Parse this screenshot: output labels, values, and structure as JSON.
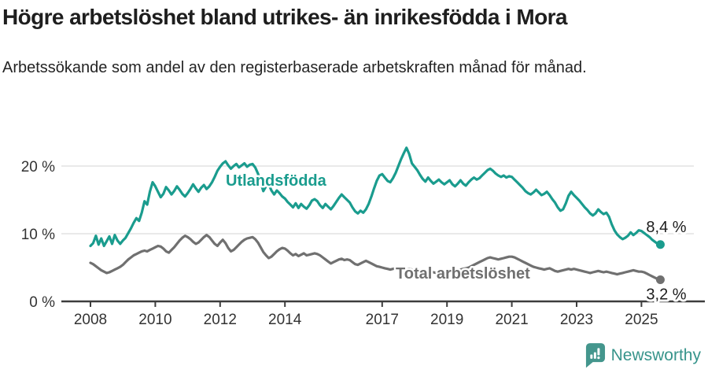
{
  "header": {
    "title": "Högre arbetslöshet bland utrikes- än inrikesfödda i Mora",
    "subtitle": "Arbetssökande som andel av den registerbaserade arbetskraften månad för månad."
  },
  "chart_data": {
    "type": "line",
    "title": "Högre arbetslöshet bland utrikes- än inrikesfödda i Mora",
    "subtitle": "Arbetssökande som andel av den registerbaserade arbetskraften månad för månad.",
    "xlabel": "",
    "ylabel": "",
    "x_start_year": 2008,
    "x_step_months": 1,
    "x_end": "2025-08",
    "x_ticks": [
      2008,
      2010,
      2012,
      2014,
      2017,
      2019,
      2021,
      2023,
      2025
    ],
    "y_ticks": [
      {
        "value": 0,
        "label": "0 %"
      },
      {
        "value": 10,
        "label": "10 %"
      },
      {
        "value": 20,
        "label": "20 %"
      }
    ],
    "ylim": [
      0,
      23.5
    ],
    "grid": "horizontal",
    "legend_position": "inline-labels",
    "series": [
      {
        "name": "Utlandsfödda",
        "color": "#1a9c8e",
        "end_label": "8,4 %",
        "end_value": 8.4,
        "values": [
          8.2,
          8.6,
          9.7,
          8.4,
          9.3,
          8.2,
          8.9,
          9.6,
          8.5,
          9.8,
          9.0,
          8.5,
          9.0,
          9.4,
          10.1,
          10.8,
          11.6,
          12.3,
          11.9,
          13.1,
          14.8,
          14.3,
          16.2,
          17.6,
          17.0,
          16.2,
          15.4,
          15.9,
          16.9,
          16.4,
          15.8,
          16.3,
          17.0,
          16.5,
          15.9,
          15.5,
          16.0,
          16.6,
          17.3,
          16.7,
          16.2,
          16.8,
          17.2,
          16.6,
          17.0,
          17.6,
          18.4,
          19.3,
          19.9,
          20.4,
          20.7,
          20.1,
          19.6,
          20.0,
          20.3,
          19.8,
          20.1,
          20.4,
          19.9,
          20.2,
          20.3,
          19.8,
          18.9,
          17.6,
          16.3,
          17.0,
          17.3,
          16.4,
          15.8,
          16.4,
          16.0,
          15.5,
          15.2,
          14.7,
          14.3,
          13.9,
          14.5,
          13.8,
          14.4,
          14.0,
          13.7,
          14.2,
          14.9,
          15.1,
          14.8,
          14.2,
          13.8,
          14.4,
          14.0,
          13.6,
          14.1,
          14.7,
          15.3,
          15.8,
          15.4,
          15.0,
          14.6,
          13.9,
          13.3,
          13.0,
          13.4,
          13.1,
          13.6,
          14.4,
          15.5,
          16.7,
          17.8,
          18.6,
          18.8,
          18.3,
          17.8,
          17.6,
          18.2,
          19.0,
          20.0,
          21.0,
          21.9,
          22.7,
          21.8,
          20.4,
          19.9,
          19.4,
          18.7,
          18.1,
          17.7,
          18.3,
          17.8,
          17.4,
          17.7,
          18.0,
          17.6,
          17.3,
          17.6,
          17.9,
          17.3,
          17.0,
          17.4,
          17.9,
          17.4,
          17.1,
          17.6,
          18.0,
          18.3,
          18.0,
          18.2,
          18.6,
          19.0,
          19.4,
          19.6,
          19.3,
          18.9,
          18.6,
          18.4,
          18.6,
          18.3,
          18.5,
          18.4,
          18.0,
          17.6,
          17.2,
          16.8,
          16.3,
          16.0,
          15.8,
          16.1,
          16.5,
          16.1,
          15.7,
          15.9,
          16.2,
          15.7,
          15.1,
          14.6,
          13.9,
          13.4,
          13.6,
          14.5,
          15.6,
          16.2,
          15.7,
          15.3,
          14.9,
          14.4,
          13.9,
          13.5,
          13.0,
          12.7,
          13.0,
          13.6,
          13.2,
          12.9,
          13.1,
          12.5,
          11.4,
          10.5,
          9.9,
          9.5,
          9.2,
          9.4,
          9.7,
          10.2,
          9.8,
          10.1,
          10.5,
          10.4,
          10.1,
          9.8,
          9.5,
          9.1,
          8.8,
          8.5,
          8.4
        ]
      },
      {
        "name": "Total arbetslöshet",
        "color": "#707070",
        "end_label": "3,2 %",
        "end_value": 3.2,
        "values": [
          5.7,
          5.5,
          5.2,
          4.9,
          4.6,
          4.4,
          4.2,
          4.3,
          4.5,
          4.7,
          4.9,
          5.1,
          5.4,
          5.8,
          6.2,
          6.5,
          6.8,
          7.0,
          7.2,
          7.4,
          7.5,
          7.4,
          7.6,
          7.8,
          8.0,
          8.2,
          8.1,
          7.8,
          7.4,
          7.2,
          7.6,
          8.0,
          8.5,
          9.0,
          9.4,
          9.7,
          9.5,
          9.2,
          8.8,
          8.5,
          8.7,
          9.1,
          9.5,
          9.8,
          9.5,
          9.0,
          8.5,
          8.2,
          8.7,
          9.1,
          8.6,
          7.9,
          7.4,
          7.6,
          8.0,
          8.4,
          8.8,
          9.1,
          9.3,
          9.4,
          9.5,
          9.2,
          8.7,
          8.0,
          7.3,
          6.8,
          6.4,
          6.6,
          7.0,
          7.4,
          7.7,
          7.9,
          7.8,
          7.5,
          7.1,
          6.8,
          7.0,
          6.7,
          6.9,
          7.1,
          6.8,
          6.9,
          7.0,
          7.1,
          7.0,
          6.8,
          6.5,
          6.2,
          5.9,
          5.6,
          5.8,
          6.0,
          6.2,
          6.3,
          6.1,
          6.2,
          6.1,
          5.8,
          5.5,
          5.4,
          5.6,
          5.8,
          6.0,
          5.8,
          5.6,
          5.4,
          5.2,
          5.1,
          5.0,
          4.9,
          4.8,
          4.7,
          4.8,
          4.9,
          4.8,
          4.7,
          4.6,
          4.7,
          4.8,
          4.7,
          4.6,
          4.5,
          4.4,
          4.3,
          4.4,
          4.5,
          4.4,
          4.3,
          4.2,
          4.3,
          4.4,
          4.5,
          4.6,
          4.7,
          4.6,
          4.5,
          4.6,
          4.7,
          4.8,
          4.9,
          5.0,
          5.2,
          5.4,
          5.6,
          5.8,
          6.0,
          6.2,
          6.4,
          6.5,
          6.4,
          6.3,
          6.2,
          6.3,
          6.4,
          6.5,
          6.6,
          6.6,
          6.5,
          6.3,
          6.1,
          5.9,
          5.7,
          5.5,
          5.3,
          5.1,
          5.0,
          4.9,
          4.8,
          4.7,
          4.8,
          4.9,
          4.7,
          4.5,
          4.4,
          4.5,
          4.6,
          4.7,
          4.8,
          4.7,
          4.8,
          4.7,
          4.6,
          4.5,
          4.4,
          4.3,
          4.2,
          4.3,
          4.4,
          4.5,
          4.4,
          4.3,
          4.4,
          4.3,
          4.2,
          4.1,
          4.0,
          4.1,
          4.2,
          4.3,
          4.4,
          4.5,
          4.6,
          4.5,
          4.4,
          4.4,
          4.3,
          4.1,
          3.9,
          3.7,
          3.5,
          3.3,
          3.2
        ]
      }
    ]
  },
  "footer": {
    "brand": "Newsworthy",
    "brand_color": "#37948b",
    "logo_icon": "speech-bubble-bar-chart-icon"
  }
}
